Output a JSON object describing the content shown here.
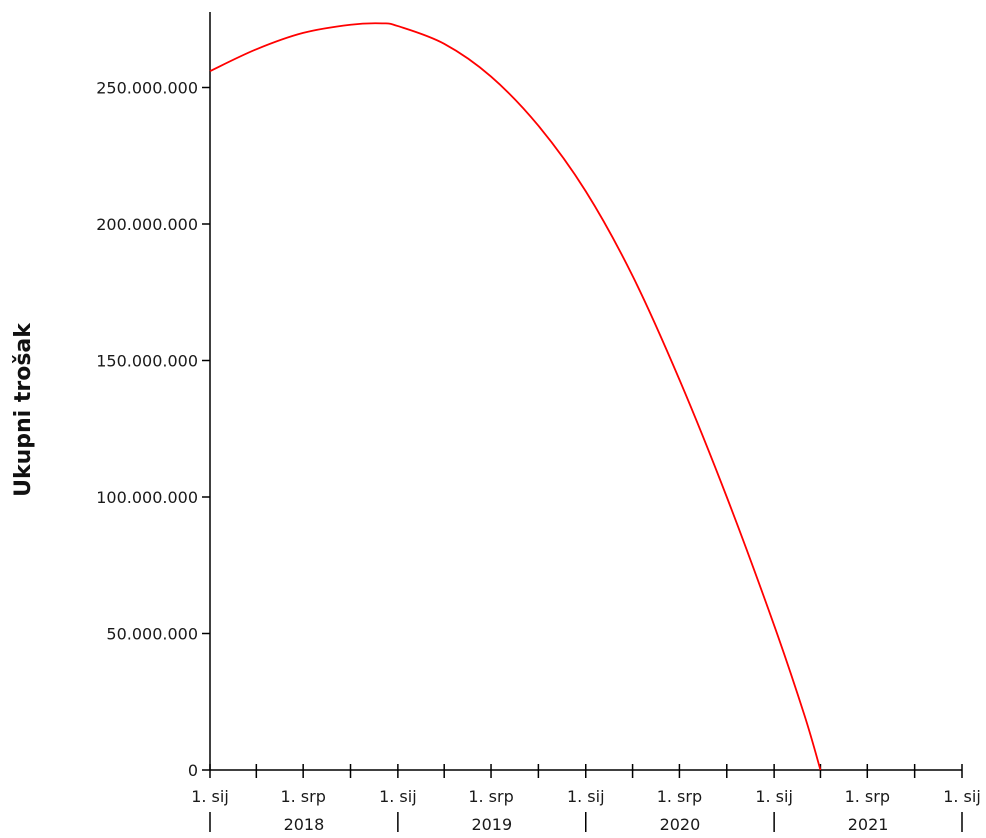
{
  "chart_data": {
    "type": "line",
    "title": "",
    "xlabel": "",
    "ylabel": "Ukupni trošak",
    "x_axis_type": "date",
    "xlim": [
      "2018-01-01",
      "2022-01-01"
    ],
    "ylim": [
      0,
      280000000
    ],
    "y_ticks": [
      {
        "value": 0,
        "label": "0"
      },
      {
        "value": 50000000,
        "label": "50.000.000"
      },
      {
        "value": 100000000,
        "label": "100.000.000"
      },
      {
        "value": 150000000,
        "label": "150.000.000"
      },
      {
        "value": 200000000,
        "label": "200.000.000"
      },
      {
        "value": 250000000,
        "label": "250.000.000"
      }
    ],
    "x_ticks": [
      {
        "date": "2018-01-01",
        "label": "1. sij"
      },
      {
        "date": "2018-07-01",
        "label": "1. srp"
      },
      {
        "date": "2019-01-01",
        "label": "1. sij"
      },
      {
        "date": "2019-07-01",
        "label": "1. srp"
      },
      {
        "date": "2020-01-01",
        "label": "1. sij"
      },
      {
        "date": "2020-07-01",
        "label": "1. srp"
      },
      {
        "date": "2021-01-01",
        "label": "1. sij"
      },
      {
        "date": "2021-07-01",
        "label": "1. srp"
      },
      {
        "date": "2022-01-01",
        "label": "1. sij"
      }
    ],
    "x_minor_ticks": [
      "2018-04-01",
      "2018-10-01",
      "2019-04-01",
      "2019-10-01",
      "2020-04-01",
      "2020-10-01",
      "2021-04-01",
      "2021-10-01"
    ],
    "year_labels": [
      {
        "label": "2018",
        "start": "2018-01-01",
        "end": "2019-01-01"
      },
      {
        "label": "2019",
        "start": "2019-01-01",
        "end": "2020-01-01"
      },
      {
        "label": "2020",
        "start": "2020-01-01",
        "end": "2021-01-01"
      },
      {
        "label": "2021",
        "start": "2021-01-01",
        "end": "2022-01-01"
      }
    ],
    "grid": false,
    "legend": "none",
    "series": [
      {
        "color": "#ff0000",
        "points": [
          {
            "x": "2018-01-01",
            "y": 256000000
          },
          {
            "x": "2018-04-01",
            "y": 264000000
          },
          {
            "x": "2018-07-01",
            "y": 270000000
          },
          {
            "x": "2018-10-01",
            "y": 273000000
          },
          {
            "x": "2018-12-01",
            "y": 273500000
          },
          {
            "x": "2019-01-01",
            "y": 272500000
          },
          {
            "x": "2019-04-01",
            "y": 266000000
          },
          {
            "x": "2019-07-01",
            "y": 254000000
          },
          {
            "x": "2019-10-01",
            "y": 236000000
          },
          {
            "x": "2020-01-01",
            "y": 212000000
          },
          {
            "x": "2020-04-01",
            "y": 181000000
          },
          {
            "x": "2020-07-01",
            "y": 143000000
          },
          {
            "x": "2020-10-01",
            "y": 100000000
          },
          {
            "x": "2021-01-01",
            "y": 53000000
          },
          {
            "x": "2021-03-01",
            "y": 20000000
          },
          {
            "x": "2021-04-01",
            "y": 0
          }
        ]
      }
    ]
  }
}
